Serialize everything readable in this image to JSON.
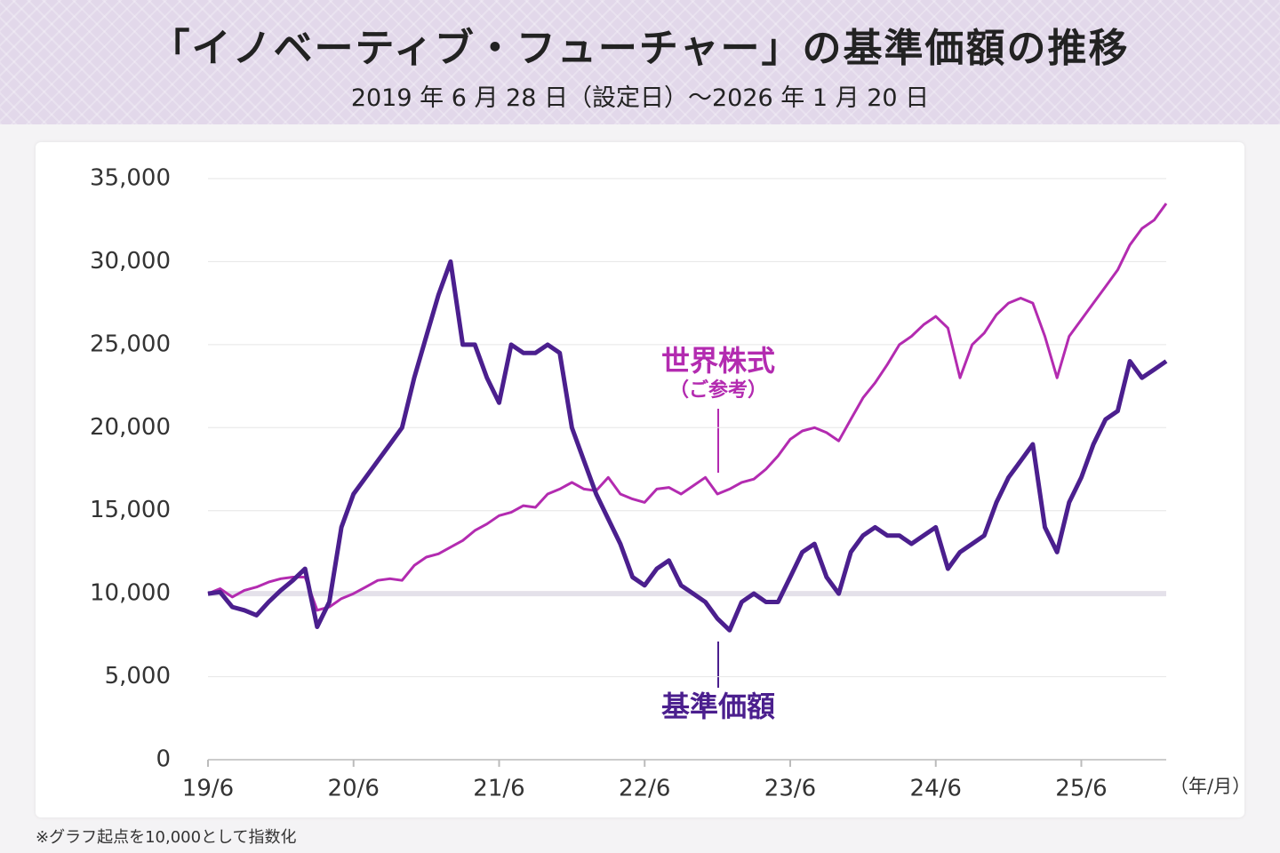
{
  "chart_data": {
    "type": "line",
    "title": "「イノベーティブ・フューチャー」の基準価額の推移",
    "subtitle": "2019 年 6 月 28 日（設定日）〜2026 年 1 月 20 日",
    "note": "※グラフ起点を10,000として指数化",
    "x_label": "（年/月）",
    "annotation": "（ご参考）",
    "x": [
      "2019-06",
      "2019-07",
      "2019-08",
      "2019-09",
      "2019-10",
      "2019-11",
      "2019-12",
      "2020-01",
      "2020-02",
      "2020-03",
      "2020-04",
      "2020-05",
      "2020-06",
      "2020-07",
      "2020-08",
      "2020-09",
      "2020-10",
      "2020-11",
      "2020-12",
      "2021-01",
      "2021-02",
      "2021-03",
      "2021-04",
      "2021-05",
      "2021-06",
      "2021-07",
      "2021-08",
      "2021-09",
      "2021-10",
      "2021-11",
      "2021-12",
      "2022-01",
      "2022-02",
      "2022-03",
      "2022-04",
      "2022-05",
      "2022-06",
      "2022-07",
      "2022-08",
      "2022-09",
      "2022-10",
      "2022-11",
      "2022-12",
      "2023-01",
      "2023-02",
      "2023-03",
      "2023-04",
      "2023-05",
      "2023-06",
      "2023-07",
      "2023-08",
      "2023-09",
      "2023-10",
      "2023-11",
      "2023-12",
      "2024-01",
      "2024-02",
      "2024-03",
      "2024-04",
      "2024-05",
      "2024-06",
      "2024-07",
      "2024-08",
      "2024-09",
      "2024-10",
      "2024-11",
      "2024-12",
      "2025-01",
      "2025-02",
      "2025-03",
      "2025-04",
      "2025-05",
      "2025-06",
      "2025-07",
      "2025-08",
      "2025-09",
      "2025-10",
      "2025-11",
      "2025-12",
      "2026-01"
    ],
    "series": [
      {
        "name": "世界株式",
        "color": "#b32bb0",
        "width": 3,
        "values": [
          10000,
          10300,
          9800,
          10200,
          10400,
          10700,
          10900,
          11000,
          11000,
          9000,
          9200,
          9700,
          10000,
          10400,
          10800,
          10900,
          10800,
          11700,
          12200,
          12400,
          12800,
          13200,
          13800,
          14200,
          14700,
          14900,
          15300,
          15200,
          16000,
          16300,
          16700,
          16300,
          16200,
          17000,
          16000,
          15700,
          15500,
          16300,
          16400,
          16000,
          16500,
          17000,
          16000,
          16300,
          16700,
          16900,
          17500,
          18300,
          19300,
          19800,
          20000,
          19700,
          19200,
          20500,
          21800,
          22700,
          23800,
          25000,
          25500,
          26200,
          26700,
          26000,
          23000,
          25000,
          25700,
          26800,
          27500,
          27800,
          27500,
          25500,
          23000,
          25500,
          26500,
          27500,
          28500,
          29500,
          31000,
          32000,
          32500,
          33500
        ]
      },
      {
        "name": "基準価額",
        "color": "#4b1f8e",
        "width": 5,
        "values": [
          10000,
          10100,
          9200,
          9000,
          8700,
          9500,
          10200,
          10800,
          11500,
          8000,
          9500,
          14000,
          16000,
          17000,
          18000,
          19000,
          20000,
          23000,
          25500,
          28000,
          30000,
          25000,
          25000,
          23000,
          21500,
          25000,
          24500,
          24500,
          25000,
          24500,
          20000,
          18000,
          16000,
          14500,
          13000,
          11000,
          10500,
          11500,
          12000,
          10500,
          10000,
          9500,
          8500,
          7800,
          9500,
          10000,
          9500,
          9500,
          11000,
          12500,
          13000,
          11000,
          10000,
          12500,
          13500,
          14000,
          13500,
          13500,
          13000,
          13500,
          14000,
          11500,
          12500,
          13000,
          13500,
          15500,
          17000,
          18000,
          19000,
          14000,
          12500,
          15500,
          17000,
          19000,
          20500,
          21000,
          24000,
          23000,
          23500,
          24000
        ]
      }
    ],
    "xlim": [
      "2019-06",
      "2026-01"
    ],
    "xticks": [
      {
        "value": "2019-06",
        "label": "19/6"
      },
      {
        "value": "2020-06",
        "label": "20/6"
      },
      {
        "value": "2021-06",
        "label": "21/6"
      },
      {
        "value": "2022-06",
        "label": "22/6"
      },
      {
        "value": "2023-06",
        "label": "23/6"
      },
      {
        "value": "2024-06",
        "label": "24/6"
      },
      {
        "value": "2025-06",
        "label": "25/6"
      }
    ],
    "ylim": [
      0,
      35000
    ],
    "yticks": [
      0,
      {
        "value": 5000,
        "label": "5,000"
      },
      {
        "value": 10000,
        "label": "10,000"
      },
      {
        "value": 15000,
        "label": "15,000"
      },
      {
        "value": 20000,
        "label": "20,000"
      },
      {
        "value": 25000,
        "label": "25,000"
      },
      {
        "value": 30000,
        "label": "30,000"
      },
      {
        "value": 35000,
        "label": "35,000"
      }
    ],
    "baseline": 10000,
    "grid": true
  }
}
